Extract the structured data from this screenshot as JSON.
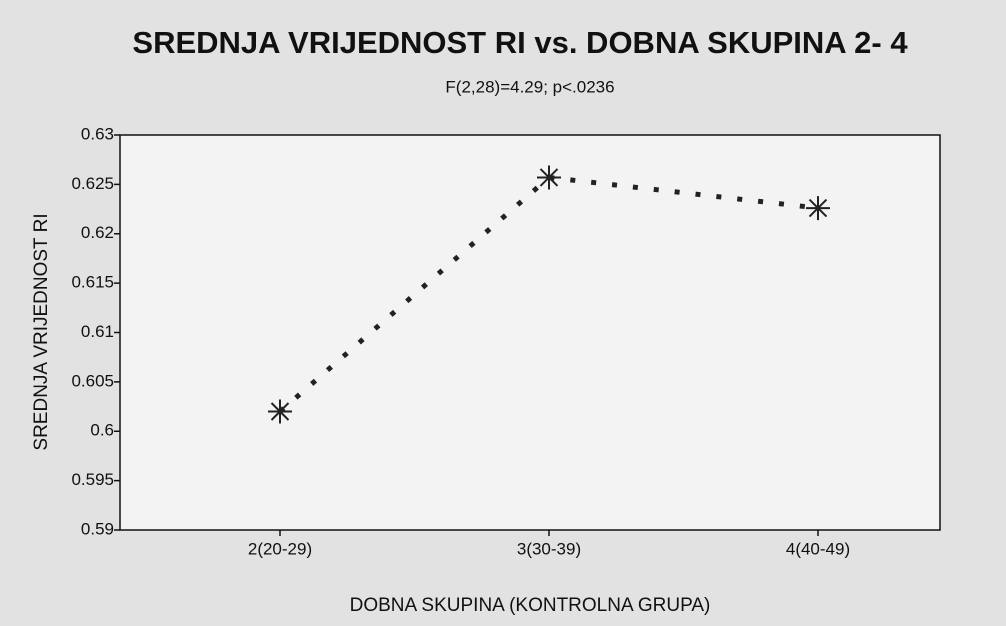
{
  "chart_data": {
    "type": "line",
    "title": "SREDNJA VRIJEDNOST RI vs. DOBNA SKUPINA 2- 4",
    "subtitle": "F(2,28)=4.29; p<.0236",
    "x_label": "DOBNA SKUPINA (KONTROLNA GRUPA)",
    "y_label": "SREDNJA VRIJEDNOST RI",
    "categories": [
      "2(20-29)",
      "3(30-39)",
      "4(40-49)"
    ],
    "values": [
      0.602,
      0.6257,
      0.6226
    ],
    "color": "#222222",
    "ylim": [
      0.59,
      0.63
    ],
    "yticks": [
      0.59,
      0.595,
      0.6,
      0.605,
      0.61,
      0.615,
      0.62,
      0.625,
      0.63
    ]
  }
}
